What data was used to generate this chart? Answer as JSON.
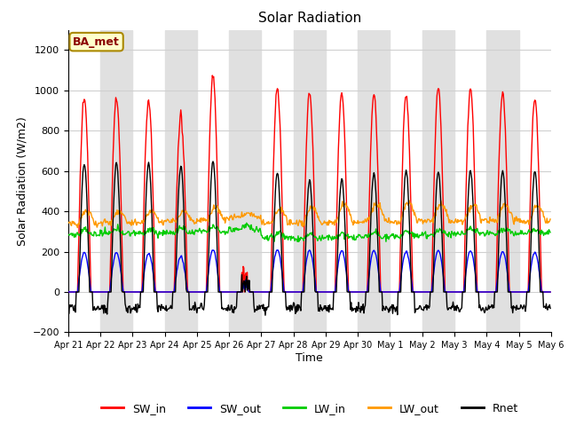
{
  "title": "Solar Radiation",
  "ylabel": "Solar Radiation (W/m2)",
  "xlabel": "Time",
  "ylim": [
    -200,
    1300
  ],
  "yticks": [
    -200,
    0,
    200,
    400,
    600,
    800,
    1000,
    1200
  ],
  "num_days": 15,
  "hours_per_day": 24,
  "dt_hours": 0.5,
  "annotation": "BA_met",
  "legend_entries": [
    "SW_in",
    "SW_out",
    "LW_in",
    "LW_out",
    "Rnet"
  ],
  "line_colors": [
    "#ff0000",
    "#0000ff",
    "#00cc00",
    "#ff9900",
    "#000000"
  ],
  "background_color": "#ffffff",
  "grid_color": "#d0d0d0",
  "shade_color": "#e0e0e0",
  "fig_width": 6.4,
  "fig_height": 4.8,
  "dpi": 100,
  "x_tick_labels": [
    "Apr 21",
    "Apr 22",
    "Apr 23",
    "Apr 24",
    "Apr 25",
    "Apr 26",
    "Apr 27",
    "Apr 28",
    "Apr 29",
    "Apr 30",
    "May 1",
    "May 2",
    "May 3",
    "May 4",
    "May 5",
    "May 6"
  ],
  "SW_in_peaks": [
    960,
    960,
    950,
    870,
    1070,
    140,
    1010,
    990,
    990,
    980,
    970,
    1010,
    1000,
    990,
    960
  ],
  "SW_out_peaks": [
    195,
    195,
    190,
    175,
    210,
    30,
    210,
    205,
    205,
    205,
    200,
    205,
    205,
    200,
    195
  ],
  "LW_in_base": [
    285,
    290,
    290,
    295,
    300,
    310,
    270,
    265,
    270,
    275,
    280,
    285,
    290,
    290,
    290
  ],
  "LW_out_base": [
    340,
    345,
    345,
    350,
    360,
    370,
    340,
    340,
    345,
    350,
    350,
    350,
    355,
    355,
    350
  ],
  "LW_out_day_amp": [
    60,
    55,
    55,
    50,
    60,
    20,
    70,
    80,
    90,
    90,
    90,
    85,
    80,
    80,
    80
  ],
  "Rnet_night": -80,
  "Rnet_peaks": [
    640,
    640,
    640,
    620,
    650,
    70,
    590,
    550,
    560,
    590,
    600,
    600,
    600,
    600,
    600
  ],
  "shade_odd_days": true
}
